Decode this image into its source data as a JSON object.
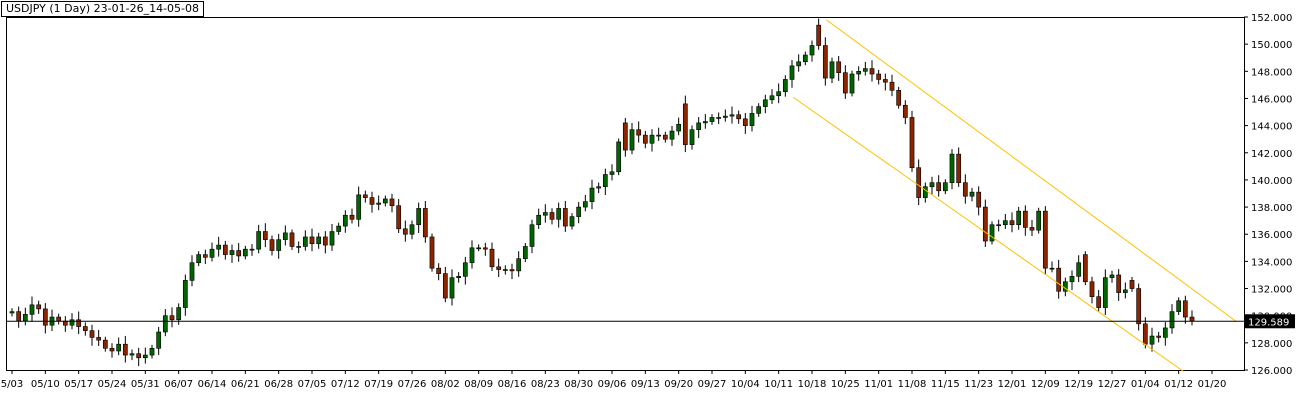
{
  "chart_data": {
    "type": "candlestick",
    "title": "USDJPY (1 Day) 23-01-26_14-05-08",
    "current_price": "129.589",
    "ylim": [
      126,
      152
    ],
    "y_ticks": [
      "126.000",
      "128.000",
      "130.000",
      "132.000",
      "134.000",
      "136.000",
      "138.000",
      "140.000",
      "142.000",
      "144.000",
      "146.000",
      "148.000",
      "150.000",
      "152.000"
    ],
    "x_labels": [
      "5/03",
      "05/10",
      "05/17",
      "05/24",
      "05/31",
      "06/07",
      "06/14",
      "06/21",
      "06/28",
      "07/05",
      "07/12",
      "07/19",
      "07/26",
      "08/02",
      "08/09",
      "08/16",
      "08/23",
      "08/30",
      "09/06",
      "09/13",
      "09/20",
      "09/27",
      "10/04",
      "10/11",
      "10/18",
      "10/25",
      "11/01",
      "11/08",
      "11/15",
      "11/23",
      "12/01",
      "12/09",
      "12/19",
      "12/27",
      "01/04",
      "01/12",
      "01/20"
    ],
    "colors": {
      "up": "#006400",
      "down": "#8b2500",
      "channel": "#ffc000",
      "price_line": "#000000",
      "grid_frame": "#000000"
    },
    "channel": {
      "upper": {
        "start": [
          "10/21",
          151.8
        ],
        "end": [
          "01/25",
          129.6
        ]
      },
      "lower": {
        "start": [
          "10/14",
          146.1
        ],
        "end": [
          "01/13",
          125.9
        ]
      }
    },
    "closes": [
      130.3,
      129.6,
      130.1,
      130.8,
      130.5,
      129.3,
      129.9,
      129.6,
      129.3,
      129.7,
      129.2,
      128.9,
      128.4,
      128.2,
      127.6,
      127.4,
      127.9,
      127.1,
      127.2,
      126.9,
      127.1,
      127.6,
      128.8,
      130.0,
      129.7,
      130.6,
      132.6,
      133.9,
      134.5,
      134.3,
      134.9,
      135.2,
      134.5,
      134.8,
      134.4,
      134.9,
      134.9,
      136.2,
      135.6,
      134.8,
      135.6,
      136.1,
      135.1,
      135.1,
      135.8,
      135.3,
      135.8,
      135.2,
      136.2,
      136.6,
      137.4,
      137.1,
      138.9,
      138.7,
      138.2,
      138.3,
      138.6,
      138.1,
      136.4,
      136.0,
      136.7,
      137.9,
      135.8,
      133.5,
      133.1,
      131.3,
      132.8,
      132.9,
      133.9,
      135.0,
      135.0,
      134.9,
      133.6,
      133.4,
      133.4,
      133.3,
      134.2,
      135.1,
      136.7,
      137.4,
      137.6,
      137.1,
      137.9,
      136.6,
      137.3,
      138.0,
      138.4,
      139.4,
      139.5,
      140.4,
      140.6,
      142.8,
      142.2,
      143.7,
      143.3,
      142.7,
      143.3,
      143.3,
      143.0,
      143.6,
      144.1,
      142.6,
      143.7,
      144.2,
      144.3,
      144.6,
      144.6,
      144.7,
      144.8,
      144.5,
      144.0,
      144.9,
      145.4,
      145.9,
      146.2,
      146.5,
      147.4,
      148.4,
      148.7,
      149.2,
      149.9,
      149.9,
      147.5,
      148.7,
      147.9,
      146.4,
      147.8,
      148.0,
      148.2,
      147.8,
      147.4,
      147.2,
      146.6,
      145.5,
      144.6,
      140.9,
      138.7,
      139.5,
      139.8,
      139.2,
      139.8,
      141.9,
      139.8,
      138.8,
      139.1,
      138.0,
      135.5,
      136.7,
      136.7,
      137.0,
      136.7,
      137.7,
      136.5,
      136.3,
      137.7,
      133.5,
      133.5,
      131.8,
      132.5,
      132.9,
      133.9,
      132.5,
      131.4,
      130.6,
      132.8,
      133.0,
      131.7,
      131.9,
      132.0,
      129.4,
      127.9,
      128.5,
      128.4,
      129.1,
      130.3,
      131.1,
      129.9,
      129.6
    ],
    "opens": [
      130.2,
      130.3,
      129.6,
      130.1,
      130.8,
      130.5,
      129.3,
      129.9,
      129.6,
      129.3,
      129.7,
      129.2,
      128.9,
      128.4,
      128.2,
      127.6,
      127.4,
      127.9,
      127.1,
      127.2,
      126.9,
      127.1,
      127.6,
      128.8,
      130.0,
      129.7,
      130.6,
      132.6,
      133.9,
      134.5,
      134.3,
      134.9,
      135.2,
      134.5,
      134.8,
      134.4,
      134.9,
      134.9,
      136.2,
      135.6,
      134.8,
      135.6,
      136.1,
      135.1,
      135.1,
      135.8,
      135.3,
      135.8,
      135.2,
      136.2,
      136.6,
      137.4,
      137.1,
      138.9,
      138.7,
      138.2,
      138.3,
      138.6,
      138.1,
      136.4,
      136.0,
      136.7,
      137.9,
      135.8,
      133.5,
      133.1,
      131.3,
      132.8,
      132.9,
      133.9,
      135.0,
      135.0,
      134.9,
      133.6,
      133.4,
      133.4,
      133.3,
      134.2,
      135.1,
      136.7,
      137.4,
      137.6,
      137.1,
      137.9,
      136.6,
      137.3,
      138.0,
      138.4,
      139.4,
      139.5,
      140.4,
      140.6,
      144.2,
      142.2,
      143.7,
      143.3,
      142.7,
      143.3,
      143.3,
      143.0,
      143.6,
      145.6,
      142.6,
      143.7,
      144.2,
      144.3,
      144.6,
      144.6,
      144.7,
      144.8,
      144.5,
      144.0,
      144.9,
      145.4,
      145.9,
      146.2,
      146.5,
      147.4,
      148.4,
      148.7,
      149.2,
      151.4,
      149.9,
      147.5,
      148.7,
      147.9,
      146.4,
      147.8,
      148.0,
      148.2,
      147.8,
      147.4,
      147.2,
      146.6,
      145.5,
      144.6,
      140.9,
      138.7,
      139.5,
      139.8,
      139.2,
      139.8,
      141.9,
      139.8,
      138.8,
      139.1,
      138.0,
      135.5,
      136.7,
      136.7,
      137.0,
      136.7,
      137.7,
      136.5,
      136.3,
      137.7,
      133.5,
      133.5,
      131.8,
      132.5,
      132.9,
      134.5,
      132.5,
      131.4,
      130.6,
      132.8,
      133.0,
      131.7,
      132.6,
      132.0,
      129.4,
      127.9,
      128.5,
      128.4,
      129.1,
      130.3,
      131.1,
      129.9
    ]
  }
}
